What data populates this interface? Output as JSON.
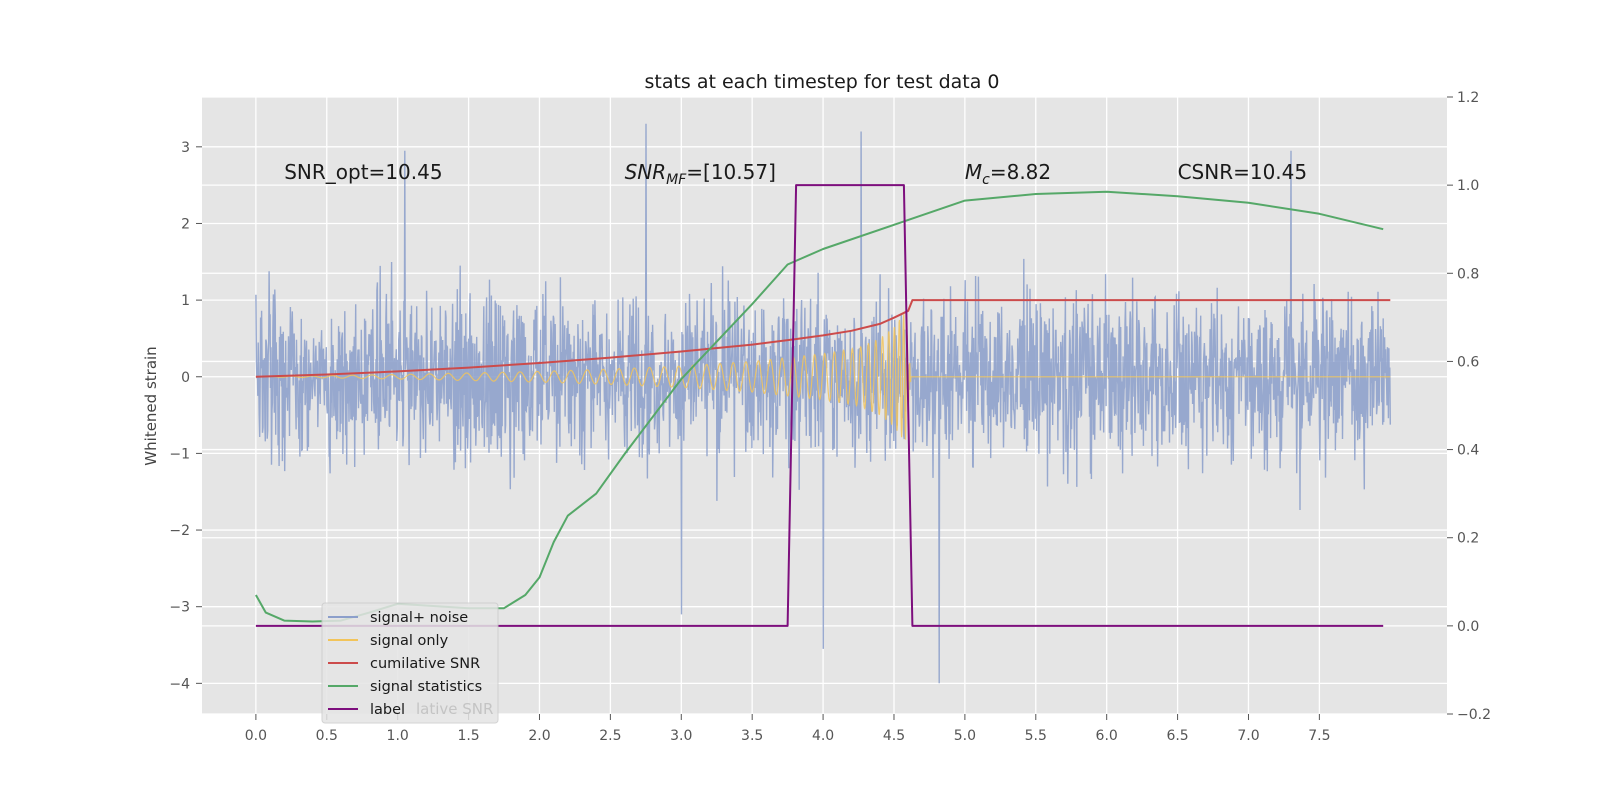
{
  "chart_data": {
    "type": "line",
    "title": "stats at each timestep for test data 0",
    "ylabel": "Whitened strain",
    "xlim": [
      -0.38,
      8.4
    ],
    "ylim": [
      -4.4,
      3.65
    ],
    "y2lim": [
      -0.2,
      1.2
    ],
    "grid": true,
    "x_ticks": [
      0.0,
      0.5,
      1.0,
      1.5,
      2.0,
      2.5,
      3.0,
      3.5,
      4.0,
      4.5,
      5.0,
      5.5,
      6.0,
      6.5,
      7.0,
      7.5
    ],
    "x_tick_labels": [
      "0.0",
      "0.5",
      "1.0",
      "1.5",
      "2.0",
      "2.5",
      "3.0",
      "3.5",
      "4.0",
      "4.5",
      "5.0",
      "5.5",
      "6.0",
      "6.5",
      "7.0",
      "7.5"
    ],
    "y_ticks": [
      3,
      2,
      1,
      0,
      -1,
      -2,
      -3,
      -4
    ],
    "y_tick_labels": [
      "3",
      "2",
      "1",
      "0",
      "−1",
      "−2",
      "−3",
      "−4"
    ],
    "y2_ticks": [
      1.2,
      1.0,
      0.8,
      0.6,
      0.4,
      0.2,
      0.0,
      -0.2
    ],
    "y2_tick_labels": [
      "1.2",
      "1.0",
      "0.8",
      "0.6",
      "0.4",
      "0.2",
      "0.0",
      "−0.2"
    ],
    "annotations": [
      {
        "text": "SNR_opt=10.45",
        "x": 0.2,
        "y": 2.58
      },
      {
        "text": "SNR_MF=[10.57]",
        "x": 2.6,
        "y": 2.58
      },
      {
        "text": "M_c=8.82",
        "x": 5.0,
        "y": 2.58
      },
      {
        "text": "CSNR=10.45",
        "x": 6.5,
        "y": 2.58
      }
    ],
    "legend": {
      "placement": "lower-left",
      "entries": [
        {
          "label": "signal+ noise",
          "color": "#8c9fcb"
        },
        {
          "label": "signal only",
          "color": "#f2c45a"
        },
        {
          "label": "cumilative SNR",
          "color": "#cc4b4b"
        },
        {
          "label": "signal statistics",
          "color": "#55a868"
        },
        {
          "label": "label",
          "color": "#7d0f7d"
        }
      ],
      "ghost_text": "lative SNR"
    },
    "series": [
      {
        "name": "signal+ noise",
        "axis": "left",
        "color": "#8c9fcb",
        "kind": "noise",
        "x_range": [
          0.0,
          8.0
        ],
        "typical_amplitude": [
          -1.4,
          1.4
        ],
        "extremes": [
          {
            "x": 1.05,
            "y": 2.95
          },
          {
            "x": 2.75,
            "y": 3.3
          },
          {
            "x": 4.27,
            "y": 3.2
          },
          {
            "x": 7.3,
            "y": 2.95
          },
          {
            "x": 4.0,
            "y": -3.55
          },
          {
            "x": 4.82,
            "y": -4.0
          },
          {
            "x": 3.0,
            "y": -3.1
          }
        ]
      },
      {
        "name": "signal only",
        "axis": "left",
        "color": "#f2c45a",
        "kind": "chirp",
        "x": [
          0.0,
          1.0,
          2.0,
          2.5,
          3.0,
          3.5,
          4.0,
          4.25,
          4.4,
          4.5,
          4.55,
          4.58,
          4.62,
          8.0
        ],
        "envelope": [
          0.0,
          0.03,
          0.07,
          0.1,
          0.14,
          0.2,
          0.3,
          0.38,
          0.5,
          0.65,
          0.78,
          0.85,
          0.0,
          0.0
        ]
      },
      {
        "name": "cumilative SNR",
        "axis": "left",
        "color": "#cc4b4b",
        "x": [
          0.0,
          0.5,
          1.0,
          1.5,
          2.0,
          2.5,
          3.0,
          3.5,
          3.8,
          4.0,
          4.2,
          4.4,
          4.5,
          4.6,
          4.63,
          8.0
        ],
        "y": [
          0.0,
          0.03,
          0.07,
          0.12,
          0.18,
          0.25,
          0.33,
          0.42,
          0.49,
          0.54,
          0.6,
          0.69,
          0.77,
          0.86,
          1.0,
          1.0
        ]
      },
      {
        "name": "signal statistics",
        "axis": "right",
        "color": "#55a868",
        "x": [
          0.0,
          0.07,
          0.2,
          0.4,
          0.6,
          0.8,
          1.0,
          1.5,
          1.75,
          1.9,
          2.0,
          2.1,
          2.2,
          2.4,
          2.6,
          3.0,
          3.5,
          3.75,
          4.0,
          4.5,
          5.0,
          5.5,
          6.0,
          6.5,
          7.0,
          7.5,
          7.95
        ],
        "y": [
          0.07,
          0.03,
          0.012,
          0.01,
          0.012,
          0.03,
          0.05,
          0.04,
          0.04,
          0.07,
          0.11,
          0.19,
          0.25,
          0.3,
          0.39,
          0.56,
          0.73,
          0.82,
          0.855,
          0.91,
          0.965,
          0.98,
          0.985,
          0.975,
          0.96,
          0.935,
          0.9
        ]
      },
      {
        "name": "label",
        "axis": "right",
        "color": "#7d0f7d",
        "x": [
          0.0,
          3.75,
          3.81,
          4.57,
          4.63,
          7.95
        ],
        "y": [
          0.0,
          0.0,
          1.0,
          1.0,
          0.0,
          0.0
        ]
      }
    ]
  }
}
